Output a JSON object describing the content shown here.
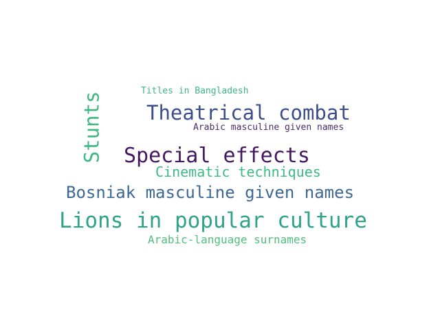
{
  "words": {
    "lions_in_popular_culture": {
      "text": "Lions in popular culture",
      "color": "#2fa38a"
    },
    "special_effects": {
      "text": "Special effects",
      "color": "#44185f"
    },
    "theatrical_combat": {
      "text": "Theatrical combat",
      "color": "#3b4d8a"
    },
    "stunts": {
      "text": "Stunts",
      "color": "#3fb783"
    },
    "bosniak_masculine_given_names": {
      "text": "Bosniak masculine given names",
      "color": "#3d6794"
    },
    "cinematic_techniques": {
      "text": "Cinematic techniques",
      "color": "#3dba84"
    },
    "arabic_language_surnames": {
      "text": "Arabic-language surnames",
      "color": "#4ec07a"
    },
    "arabic_masculine_given_names": {
      "text": "Arabic masculine given names",
      "color": "#482a6b"
    },
    "titles_in_bangladesh": {
      "text": "Titles in Bangladesh",
      "color": "#3fb784"
    }
  }
}
